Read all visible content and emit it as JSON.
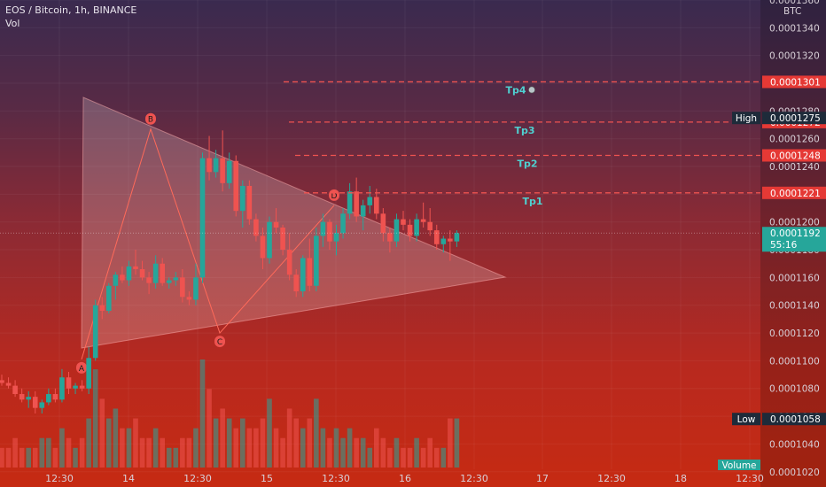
{
  "header": {
    "title": "EOS / Bitcoin, 1h, BINANCE",
    "volume_label": "Vol"
  },
  "chart_data": {
    "type": "candlestick",
    "currency": "BTC",
    "ylim": [
      0.0001009,
      0.000136
    ],
    "y_ticks": [
      "0.0001020",
      "0.0001040",
      "0.0001060",
      "0.0001080",
      "0.0001100",
      "0.0001120",
      "0.0001140",
      "0.0001160",
      "0.0001180",
      "0.0001200",
      "0.0001220",
      "0.0001240",
      "0.0001260",
      "0.0001280",
      "0.0001300",
      "0.0001320",
      "0.0001340",
      "0.0001360"
    ],
    "x_ticks": [
      "12:30",
      "14",
      "12:30",
      "15",
      "12:30",
      "16",
      "12:30",
      "17",
      "12:30",
      "18",
      "12:30"
    ],
    "candles_ohlc": [
      [
        0.0001086,
        0.000109,
        0.0001082,
        0.0001084
      ],
      [
        0.0001084,
        0.0001088,
        0.000108,
        0.0001082
      ],
      [
        0.0001082,
        0.0001086,
        0.0001074,
        0.0001076
      ],
      [
        0.0001076,
        0.000108,
        0.000107,
        0.0001072
      ],
      [
        0.0001072,
        0.0001078,
        0.0001066,
        0.0001074
      ],
      [
        0.0001074,
        0.0001078,
        0.0001062,
        0.0001066
      ],
      [
        0.0001066,
        0.0001072,
        0.0001062,
        0.000107
      ],
      [
        0.000107,
        0.000108,
        0.0001068,
        0.0001076
      ],
      [
        0.0001076,
        0.000108,
        0.000107,
        0.0001072
      ],
      [
        0.0001072,
        0.0001094,
        0.000107,
        0.0001088
      ],
      [
        0.0001088,
        0.0001092,
        0.0001076,
        0.000108
      ],
      [
        0.000108,
        0.0001084,
        0.0001076,
        0.0001082
      ],
      [
        0.0001082,
        0.0001086,
        0.0001078,
        0.000108
      ],
      [
        0.000108,
        0.000111,
        0.0001076,
        0.0001102
      ],
      [
        0.0001102,
        0.0001144,
        0.00011,
        0.000114
      ],
      [
        0.000114,
        0.0001146,
        0.000113,
        0.0001136
      ],
      [
        0.0001136,
        0.0001156,
        0.0001134,
        0.0001154
      ],
      [
        0.0001154,
        0.0001164,
        0.0001144,
        0.0001162
      ],
      [
        0.0001162,
        0.0001168,
        0.0001156,
        0.0001158
      ],
      [
        0.0001158,
        0.0001172,
        0.0001154,
        0.0001168
      ],
      [
        0.0001168,
        0.000118,
        0.0001162,
        0.0001166
      ],
      [
        0.0001166,
        0.0001172,
        0.0001158,
        0.000116
      ],
      [
        0.000116,
        0.0001164,
        0.0001148,
        0.0001156
      ],
      [
        0.0001156,
        0.0001176,
        0.0001152,
        0.000117
      ],
      [
        0.000117,
        0.0001174,
        0.0001154,
        0.0001156
      ],
      [
        0.0001156,
        0.000116,
        0.0001152,
        0.0001158
      ],
      [
        0.0001158,
        0.0001164,
        0.0001154,
        0.000116
      ],
      [
        0.000116,
        0.0001166,
        0.0001142,
        0.0001146
      ],
      [
        0.0001146,
        0.000115,
        0.000114,
        0.0001144
      ],
      [
        0.0001144,
        0.000117,
        0.000114,
        0.000116
      ],
      [
        0.000116,
        0.000125,
        0.0001156,
        0.0001246
      ],
      [
        0.0001246,
        0.0001262,
        0.000123,
        0.0001236
      ],
      [
        0.0001236,
        0.0001252,
        0.0001232,
        0.0001246
      ],
      [
        0.0001246,
        0.0001266,
        0.0001222,
        0.0001228
      ],
      [
        0.0001228,
        0.000125,
        0.0001224,
        0.0001244
      ],
      [
        0.0001244,
        0.0001248,
        0.0001204,
        0.0001208
      ],
      [
        0.0001208,
        0.000123,
        0.0001196,
        0.0001226
      ],
      [
        0.0001226,
        0.000123,
        0.0001198,
        0.0001202
      ],
      [
        0.0001202,
        0.0001206,
        0.0001186,
        0.000119
      ],
      [
        0.000119,
        0.0001196,
        0.0001166,
        0.0001174
      ],
      [
        0.0001174,
        0.0001204,
        0.000117,
        0.00012
      ],
      [
        0.00012,
        0.000121,
        0.0001192,
        0.0001196
      ],
      [
        0.0001196,
        0.0001198,
        0.0001176,
        0.000118
      ],
      [
        0.000118,
        0.0001192,
        0.0001158,
        0.0001162
      ],
      [
        0.0001162,
        0.0001166,
        0.0001146,
        0.000115
      ],
      [
        0.000115,
        0.0001176,
        0.0001146,
        0.0001174
      ],
      [
        0.0001174,
        0.0001188,
        0.000115,
        0.0001154
      ],
      [
        0.0001154,
        0.0001196,
        0.000115,
        0.000119
      ],
      [
        0.000119,
        0.0001206,
        0.0001182,
        0.00012
      ],
      [
        0.00012,
        0.0001202,
        0.000118,
        0.0001186
      ],
      [
        0.0001186,
        0.0001198,
        0.0001176,
        0.0001192
      ],
      [
        0.0001192,
        0.000121,
        0.0001188,
        0.0001206
      ],
      [
        0.0001206,
        0.0001228,
        0.0001202,
        0.0001222
      ],
      [
        0.0001222,
        0.0001232,
        0.00012,
        0.0001204
      ],
      [
        0.0001204,
        0.0001216,
        0.0001194,
        0.0001212
      ],
      [
        0.0001212,
        0.0001226,
        0.0001206,
        0.0001218
      ],
      [
        0.0001218,
        0.0001224,
        0.0001202,
        0.0001206
      ],
      [
        0.0001206,
        0.000121,
        0.0001186,
        0.0001192
      ],
      [
        0.0001192,
        0.0001196,
        0.0001178,
        0.0001186
      ],
      [
        0.0001186,
        0.0001206,
        0.0001182,
        0.0001202
      ],
      [
        0.0001202,
        0.0001208,
        0.0001194,
        0.0001198
      ],
      [
        0.0001198,
        0.0001202,
        0.0001186,
        0.000119
      ],
      [
        0.000119,
        0.0001206,
        0.0001186,
        0.0001202
      ],
      [
        0.0001202,
        0.0001214,
        0.0001196,
        0.00012
      ],
      [
        0.00012,
        0.000121,
        0.000119,
        0.0001194
      ],
      [
        0.0001194,
        0.0001198,
        0.000118,
        0.0001184
      ],
      [
        0.0001184,
        0.000119,
        0.0001178,
        0.0001188
      ],
      [
        0.0001188,
        0.0001194,
        0.0001172,
        0.0001186
      ],
      [
        0.0001186,
        0.0001194,
        0.0001182,
        0.0001192
      ]
    ],
    "volume": [
      2,
      2,
      3,
      2,
      2,
      2,
      3,
      3,
      2,
      4,
      3,
      2,
      3,
      5,
      10,
      7,
      5,
      6,
      4,
      4,
      5,
      3,
      3,
      4,
      3,
      2,
      2,
      3,
      3,
      4,
      11,
      8,
      5,
      6,
      5,
      4,
      5,
      4,
      4,
      5,
      7,
      4,
      3,
      6,
      5,
      4,
      5,
      7,
      4,
      3,
      4,
      3,
      4,
      3,
      3,
      2,
      4,
      3,
      2,
      3,
      2,
      2,
      3,
      2,
      3,
      2,
      2,
      5,
      5
    ],
    "pattern": {
      "points": [
        {
          "name": "A",
          "value": 0.0001101
        },
        {
          "name": "B",
          "value": 0.0001267
        },
        {
          "name": "C",
          "value": 0.000112
        },
        {
          "name": "D",
          "value": 0.0001212
        }
      ]
    },
    "targets": [
      {
        "label": "Tp1",
        "value": "0.0001221"
      },
      {
        "label": "Tp2",
        "value": "0.0001248"
      },
      {
        "label": "Tp3",
        "value": "0.0001272"
      },
      {
        "label": "Tp4",
        "value": "0.0001301"
      }
    ],
    "high": {
      "label": "High",
      "value": "0.0001275"
    },
    "low": {
      "label": "Low",
      "value": "0.0001058"
    },
    "current": {
      "value": "0.0001192",
      "countdown": "55:16"
    },
    "volume_tag": "Volume"
  },
  "colors": {
    "up": "#26a69a",
    "down": "#ef5350",
    "target_line": "#ef5350",
    "axis_bg": "#2b1f33",
    "current_tag": "#26a69a",
    "tag_dark": "#1e2b3a"
  }
}
